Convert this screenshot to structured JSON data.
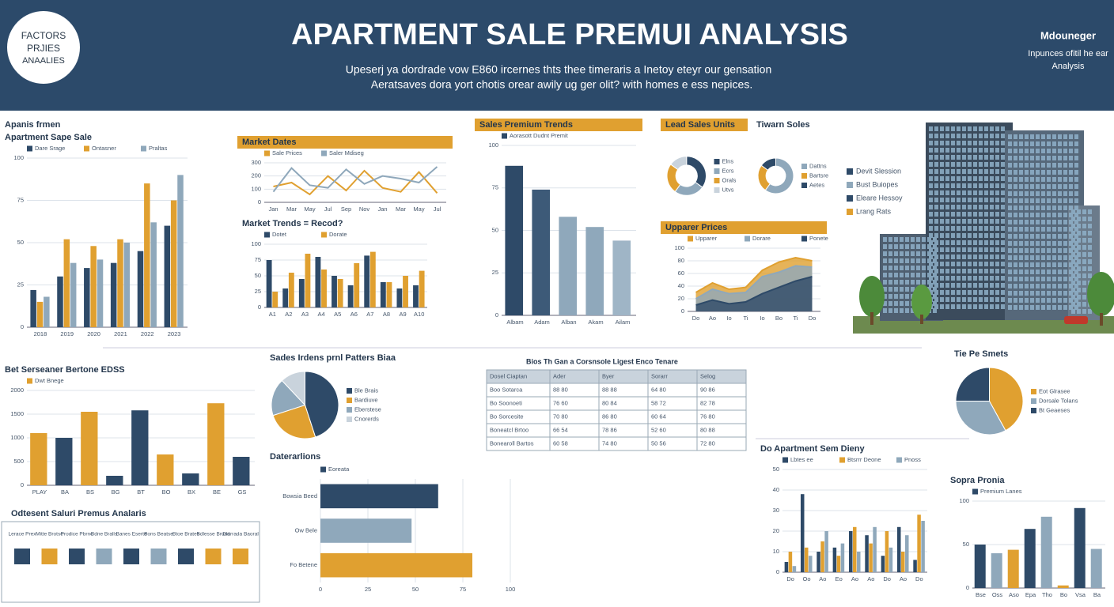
{
  "header": {
    "badge": [
      "FACTORS",
      "PRJIES",
      "ANAALIES"
    ],
    "title": "APARTMENT SALE PREMUI ANALYSIS",
    "subtitle": [
      "Upeserj ya dordrade vow E860 ircernes thts thee timeraris a Inetoy eteyr our gensation",
      "Aeratsaves dora yort chotis orear awily ug ger olit? with homes e ess nepices."
    ],
    "brand": "Mdouneger",
    "brand_note": [
      "Inpunces ofitil he ear",
      "Analysis"
    ]
  },
  "chart_data": [
    {
      "type": "bar",
      "title": "Apanis frmen",
      "subtitle": "Apartment Sape Sale",
      "categories": [
        "2018",
        "2019",
        "2020",
        "2021",
        "2022",
        "2023"
      ],
      "series": [
        {
          "name": "Dare Srage",
          "color": "#2e4a68",
          "values": [
            22,
            30,
            35,
            38,
            45,
            60
          ]
        },
        {
          "name": "Ontasner",
          "color": "#e0a030",
          "values": [
            15,
            52,
            48,
            52,
            85,
            75
          ]
        },
        {
          "name": "Praltas",
          "color": "#8fa8bb",
          "values": [
            18,
            38,
            40,
            50,
            62,
            90
          ]
        }
      ],
      "ylim": [
        0,
        100
      ],
      "yticks": [
        0,
        25,
        50,
        75,
        100
      ]
    },
    {
      "type": "line",
      "title": "Market Dates",
      "categories": [
        "Jan",
        "Mar",
        "May",
        "Jul",
        "Sep",
        "Nov",
        "Jan",
        "Mar",
        "May",
        "Jul"
      ],
      "series": [
        {
          "name": "Sale Prices",
          "color": "#e0a030",
          "values": [
            120,
            150,
            60,
            200,
            90,
            240,
            110,
            80,
            230,
            70
          ]
        },
        {
          "name": "Saler Mdiseg",
          "color": "#8fa8bb",
          "values": [
            80,
            260,
            130,
            110,
            250,
            140,
            200,
            180,
            150,
            270
          ]
        }
      ],
      "ylim": [
        0,
        300
      ],
      "yticks": [
        0,
        100,
        200,
        300
      ]
    },
    {
      "type": "bar",
      "title": "Market Trends = Recod?",
      "categories": [
        "A1",
        "A2",
        "A3",
        "A4",
        "A5",
        "A6",
        "A7",
        "A8",
        "A9",
        "A10"
      ],
      "series": [
        {
          "name": "Dotet",
          "color": "#2e4a68",
          "values": [
            75,
            30,
            45,
            80,
            50,
            35,
            82,
            40,
            30,
            35
          ]
        },
        {
          "name": "Dorate",
          "color": "#e0a030",
          "values": [
            25,
            55,
            85,
            60,
            45,
            70,
            88,
            40,
            50,
            58
          ]
        }
      ],
      "ylim": [
        0,
        100
      ],
      "yticks": [
        0,
        25,
        50,
        75,
        100
      ]
    },
    {
      "type": "bar",
      "title": "Sales Premium Trends",
      "categories": [
        "Albam",
        "Adam",
        "Alban",
        "Akam",
        "Ailam"
      ],
      "series": [
        {
          "name": "Aorasott Dudnt Premit",
          "colors": [
            "#2e4a68",
            "#3d5a78",
            "#8fa8bb",
            "#8fa8bb",
            "#9fb5c6"
          ],
          "values": [
            88,
            74,
            58,
            52,
            44
          ]
        }
      ],
      "ylim": [
        0,
        100
      ],
      "yticks": [
        0,
        25,
        50,
        75,
        100
      ]
    },
    {
      "type": "donut",
      "title": "Lead Sales Units",
      "labels": [
        "Elns",
        "Ecrs",
        "Orals",
        "Utvs"
      ],
      "values": [
        35,
        25,
        25,
        15
      ],
      "colors": [
        "#2e4a68",
        "#8fa8bb",
        "#e0a030",
        "#c9d3dc"
      ]
    },
    {
      "type": "donut",
      "title": "Tiwarn Soles",
      "labels": [
        "Dattns",
        "Bartsre",
        "Aetes"
      ],
      "values": [
        60,
        25,
        15
      ],
      "colors": [
        "#8fa8bb",
        "#e0a030",
        "#2e4a68"
      ]
    },
    {
      "type": "area",
      "title": "Upparer Prices",
      "categories": [
        "Do",
        "Ao",
        "Io",
        "Ti",
        "Io",
        "Bo",
        "Ti",
        "Do"
      ],
      "series": [
        {
          "name": "Upparer",
          "color": "#e0a030",
          "values": [
            30,
            45,
            35,
            38,
            65,
            78,
            85,
            80
          ]
        },
        {
          "name": "Dorare",
          "color": "#8fa8bb",
          "values": [
            20,
            35,
            28,
            30,
            55,
            62,
            72,
            70
          ]
        },
        {
          "name": "Ponete",
          "color": "#2e4a68",
          "values": [
            10,
            18,
            12,
            15,
            28,
            38,
            48,
            55
          ]
        }
      ],
      "ylim": [
        0,
        100
      ],
      "yticks": [
        0,
        20,
        40,
        60,
        80,
        100
      ]
    },
    {
      "type": "bar",
      "title": "Bet Serseaner Bertone EDSS",
      "categories": [
        "PLAY",
        "BA",
        "BS",
        "BG",
        "BT",
        "BO",
        "BX",
        "BE",
        "GS"
      ],
      "series": [
        {
          "name": "Dwt Bnege",
          "colors": [
            "#e0a030",
            "#2e4a68",
            "#e0a030",
            "#2e4a68",
            "#2e4a68",
            "#e0a030",
            "#2e4a68",
            "#e0a030",
            "#2e4a68"
          ],
          "values": [
            1100,
            1000,
            1550,
            200,
            1580,
            650,
            250,
            1730,
            600
          ]
        }
      ],
      "ylim": [
        0,
        2000
      ],
      "yticks": [
        0,
        500,
        1000,
        1500,
        2000
      ]
    },
    {
      "type": "pie",
      "title": "Sades Irdens prnl Patters Biaa",
      "labels": [
        "Ble Brais",
        "Bardiuve",
        "Eberstese",
        "Cnorerds"
      ],
      "values": [
        45,
        25,
        18,
        12
      ],
      "colors": [
        "#2e4a68",
        "#e0a030",
        "#8fa8bb",
        "#c9d3dc"
      ]
    },
    {
      "type": "hbar",
      "title": "Daterarlions",
      "categories": [
        "Bowsia Beed",
        "Ow Bele",
        "Fo Betene"
      ],
      "series": [
        {
          "name": "Eoreata",
          "colors": [
            "#2e4a68",
            "#8fa8bb",
            "#e0a030"
          ],
          "values": [
            62,
            48,
            80
          ]
        }
      ],
      "xlim": [
        0,
        100
      ],
      "xticks": [
        0,
        25,
        50,
        75,
        100
      ]
    },
    {
      "type": "pie",
      "title": "Tie Pe Smets",
      "labels": [
        "Eot Glrasee",
        "Dorsale Tolans",
        "Bt Geaeses"
      ],
      "values": [
        42,
        33,
        25
      ],
      "colors": [
        "#e0a030",
        "#8fa8bb",
        "#2e4a68"
      ]
    },
    {
      "type": "bar",
      "title": "Do Apartment Sem Dieny",
      "categories": [
        "Do",
        "Oo",
        "Ao",
        "Eo",
        "Ao",
        "Ao",
        "Do",
        "Ao",
        "Do"
      ],
      "series": [
        {
          "name": "Lbtes ee",
          "color": "#2e4a68",
          "values": [
            5,
            38,
            10,
            12,
            20,
            18,
            8,
            22,
            6
          ]
        },
        {
          "name": "Btsrrr Deone",
          "color": "#e0a030",
          "values": [
            10,
            12,
            15,
            8,
            22,
            14,
            20,
            10,
            28
          ]
        },
        {
          "name": "Pnoss",
          "color": "#8fa8bb",
          "values": [
            3,
            8,
            20,
            14,
            10,
            22,
            12,
            18,
            25
          ]
        }
      ],
      "ylim": [
        0,
        50
      ],
      "yticks": [
        0,
        10,
        20,
        30,
        40,
        50
      ]
    },
    {
      "type": "bar",
      "title": "Sopra Pronia",
      "categories": [
        "Bse",
        "Oss",
        "Aso",
        "Epa",
        "Tho",
        "Bo",
        "Vsa",
        "Ba"
      ],
      "series": [
        {
          "name": "Premium Lanes",
          "colors": [
            "#2e4a68",
            "#8fa8bb",
            "#e0a030",
            "#2e4a68",
            "#8fa8bb",
            "#e0a030",
            "#2e4a68",
            "#8fa8bb"
          ],
          "values": [
            50,
            40,
            44,
            68,
            82,
            3,
            92,
            45
          ]
        }
      ],
      "ylim": [
        0,
        100
      ],
      "yticks": [
        0,
        50,
        100
      ]
    }
  ],
  "table": {
    "title": "Bios Th Gan a Corsnsole Ligest Enco Tenare",
    "header": [
      "Dosel Ciaptan",
      "Ader",
      "Byer",
      "Sorarr",
      "Selog"
    ],
    "rows": [
      [
        "Boo Sotarca",
        "88 80",
        "88 88",
        "64 80",
        "90 86"
      ],
      [
        "Bo Soonoeti",
        "76 60",
        "80 84",
        "58 72",
        "82 78"
      ],
      [
        "Bo Sorcesite",
        "70 80",
        "86 80",
        "60 64",
        "76 80"
      ],
      [
        "Boneatcl Brtoo",
        "66 54",
        "78 86",
        "52 60",
        "80 88"
      ],
      [
        "Bonearoll Bartos",
        "60 58",
        "74 80",
        "50 56",
        "72 80"
      ]
    ]
  },
  "building_legend": [
    "Devit Slession",
    "Bust Buiopes",
    "Eleare Hessoy",
    "Lrang Rats"
  ],
  "icon_row": {
    "title": "Odtesent Saluri Premus Analaris",
    "items": [
      {
        "label": "Lerace Prex",
        "color": "#2e4a68"
      },
      {
        "label": "Mitte Brotse",
        "color": "#e0a030"
      },
      {
        "label": "Prodice Pbrnc",
        "color": "#2e4a68"
      },
      {
        "label": "Bdne Bralls",
        "color": "#8fa8bb"
      },
      {
        "label": "Banes Eserte",
        "color": "#2e4a68"
      },
      {
        "label": "Bons Beatse",
        "color": "#8fa8bb"
      },
      {
        "label": "Btoe Brates",
        "color": "#2e4a68"
      },
      {
        "label": "Bdlesse Brusd",
        "color": "#e0a030"
      },
      {
        "label": "Dlarrada Baoral",
        "color": "#e0a030"
      }
    ]
  }
}
